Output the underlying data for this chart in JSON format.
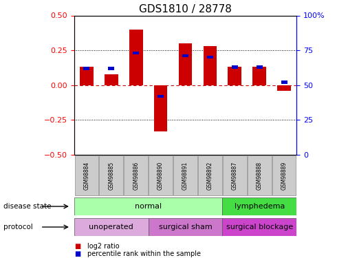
{
  "title": "GDS1810 / 28778",
  "samples": [
    "GSM98884",
    "GSM98885",
    "GSM98886",
    "GSM98890",
    "GSM98891",
    "GSM98892",
    "GSM98887",
    "GSM98888",
    "GSM98889"
  ],
  "log2_ratio": [
    0.13,
    0.08,
    0.4,
    -0.33,
    0.3,
    0.28,
    0.13,
    0.13,
    -0.04
  ],
  "pct_rank": [
    62,
    62,
    73,
    42,
    71,
    70,
    63,
    63,
    52
  ],
  "ylim_left": [
    -0.5,
    0.5
  ],
  "ylim_right": [
    0,
    100
  ],
  "yticks_left": [
    -0.5,
    -0.25,
    0,
    0.25,
    0.5
  ],
  "yticks_right": [
    0,
    25,
    50,
    75,
    100
  ],
  "bar_color": "#cc0000",
  "pct_color": "#0000cc",
  "zero_line_color": "#cc0000",
  "grid_color": "#000000",
  "disease_state_groups": [
    {
      "label": "normal",
      "start": 0,
      "end": 6,
      "color": "#aaffaa"
    },
    {
      "label": "lymphedema",
      "start": 6,
      "end": 9,
      "color": "#44dd44"
    }
  ],
  "protocol_groups": [
    {
      "label": "unoperated",
      "start": 0,
      "end": 3,
      "color": "#ddaadd"
    },
    {
      "label": "surgical sham",
      "start": 3,
      "end": 6,
      "color": "#cc77cc"
    },
    {
      "label": "surgical blockage",
      "start": 6,
      "end": 9,
      "color": "#cc44cc"
    }
  ],
  "legend_items": [
    {
      "label": "log2 ratio",
      "color": "#cc0000"
    },
    {
      "label": "percentile rank within the sample",
      "color": "#0000cc"
    }
  ],
  "left_label_ds": "disease state",
  "left_label_pr": "protocol",
  "title_fontsize": 11,
  "tick_fontsize": 8,
  "bar_width": 0.55
}
